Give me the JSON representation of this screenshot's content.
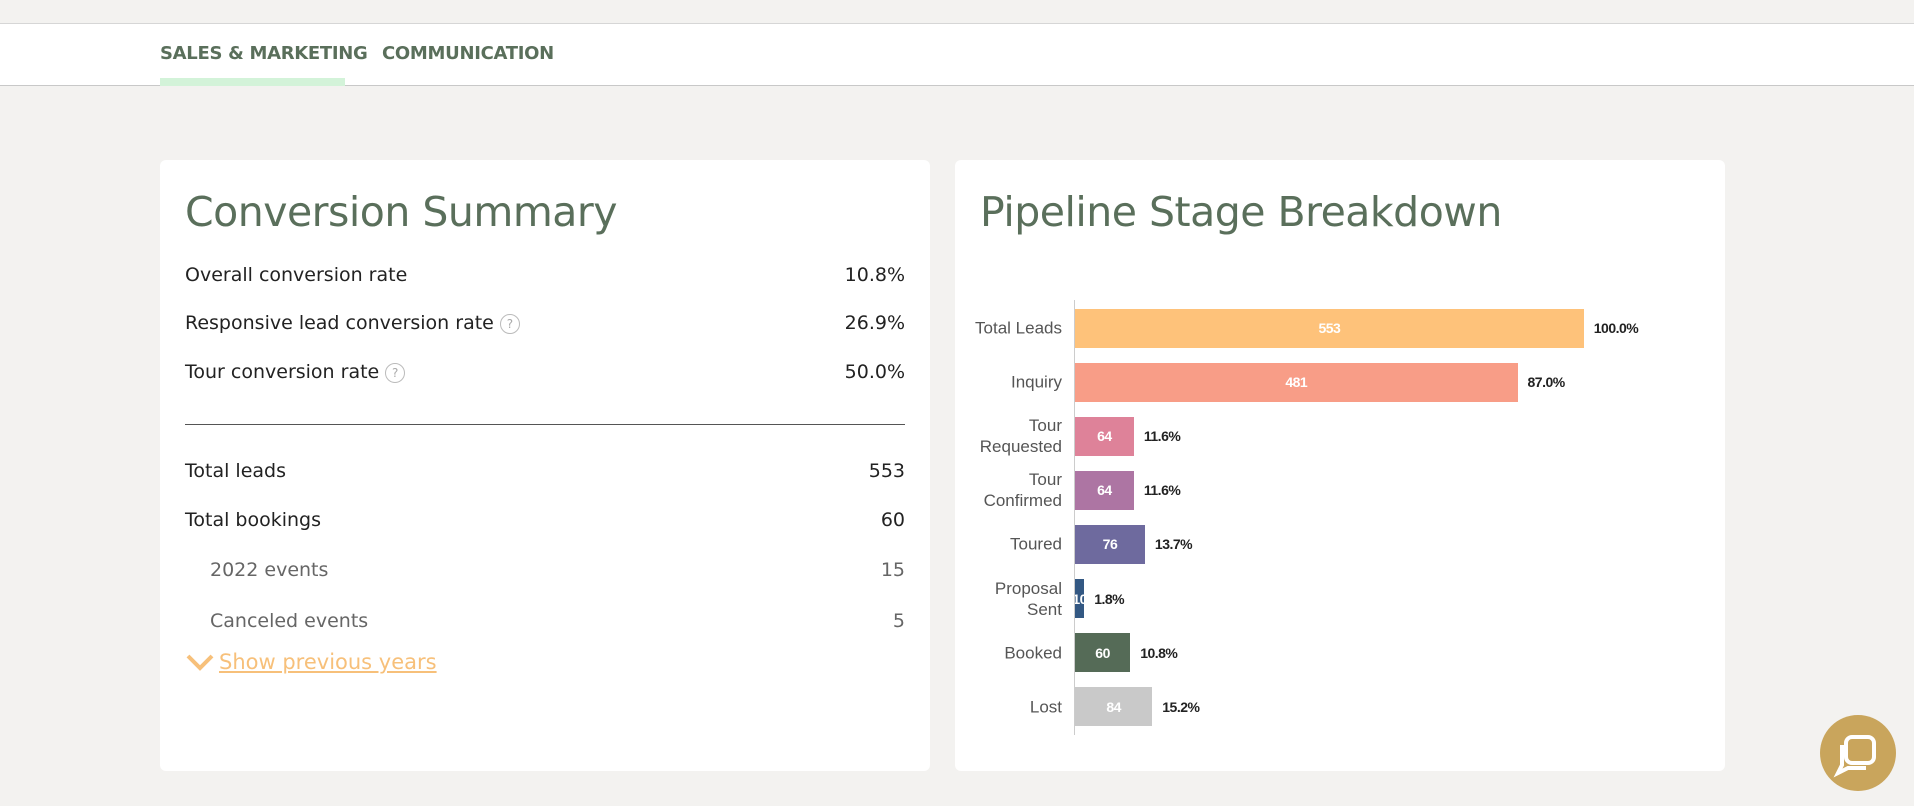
{
  "tabs": [
    "SALES & MARKETING",
    "COMMUNICATION"
  ],
  "summary": {
    "title": "Conversion Summary",
    "rates": [
      {
        "label": "Overall conversion rate",
        "value": "10.8%"
      },
      {
        "label": "Responsive lead conversion rate",
        "value": "26.9%",
        "help": "?"
      },
      {
        "label": "Tour conversion rate",
        "value": "50.0%",
        "help": "?"
      }
    ],
    "totals": [
      {
        "label": "Total leads",
        "value": "553"
      },
      {
        "label": "Total bookings",
        "value": "60"
      }
    ],
    "sub_rows": [
      {
        "label": "2022 events",
        "value": "15"
      },
      {
        "label": "Canceled events",
        "value": "5"
      }
    ],
    "show_more": "Show previous years"
  },
  "chart_data": {
    "type": "hbar",
    "title": "Pipeline Stage Breakdown",
    "categories": [
      "Total Leads",
      "Inquiry",
      "Tour Requested",
      "Tour Confirmed",
      "Toured",
      "Proposal Sent",
      "Booked",
      "Lost"
    ],
    "values": [
      553,
      481,
      64,
      64,
      76,
      10,
      60,
      84
    ],
    "percents": [
      100.0,
      87.0,
      11.6,
      11.6,
      13.7,
      1.8,
      10.8,
      15.2
    ],
    "percent_labels": [
      "100.0%",
      "87.0%",
      "11.6%",
      "11.6%",
      "13.7%",
      "1.8%",
      "10.8%",
      "15.2%"
    ],
    "colors": [
      "#fec27a",
      "#f89d87",
      "#de8299",
      "#ad75a3",
      "#6e6a9e",
      "#335883",
      "#556b57",
      "#c9c9c9"
    ],
    "xlim": [
      0,
      700
    ]
  },
  "chat": "chat"
}
